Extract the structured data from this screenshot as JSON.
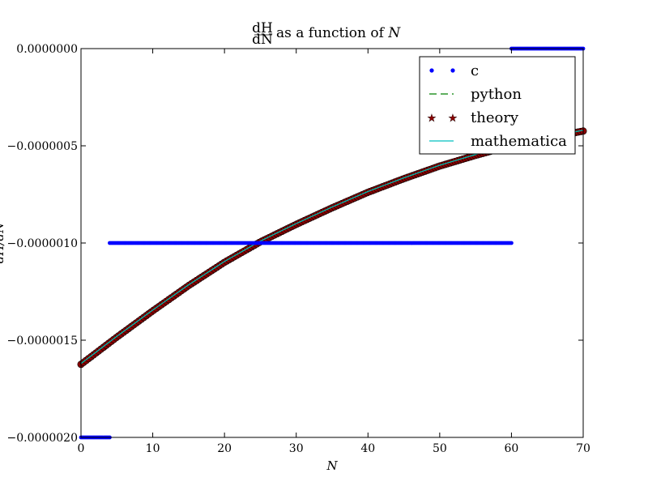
{
  "chart_data": {
    "type": "line",
    "title_prefix": "dH/dN",
    "title_suffix": " as a function of ",
    "title_var": "N",
    "xlabel": "N",
    "ylabel": "dH/dN",
    "xlim": [
      0,
      70
    ],
    "ylim": [
      -2e-06,
      0.0
    ],
    "x_ticks": [
      0,
      10,
      20,
      30,
      40,
      50,
      60,
      70
    ],
    "x_tick_labels": [
      "0",
      "10",
      "20",
      "30",
      "40",
      "50",
      "60",
      "70"
    ],
    "y_ticks": [
      0.0,
      -5e-07,
      -1e-06,
      -1.5e-06,
      -2e-06
    ],
    "y_tick_labels": [
      "0.0000000",
      "−0.0000005",
      "−0.0000010",
      "−0.0000015",
      "−0.0000020"
    ],
    "grid": false,
    "legend_placement": "upper-right",
    "series": [
      {
        "name": "c",
        "style": "dots",
        "color": "#0000ff",
        "segments": [
          {
            "x": [
              0,
              4
            ],
            "y": -2e-06
          },
          {
            "x": [
              4,
              60
            ],
            "y": -1e-06
          },
          {
            "x": [
              60,
              70
            ],
            "y": 0.0
          }
        ]
      },
      {
        "name": "python",
        "style": "dashed",
        "color": "#008000",
        "x": [
          0,
          5,
          10,
          15,
          20,
          25,
          30,
          35,
          40,
          45,
          50,
          55,
          60,
          65,
          70
        ],
        "y": [
          -1.62e-06,
          -1.48e-06,
          -1.345e-06,
          -1.215e-06,
          -1.095e-06,
          -9.9e-07,
          -9e-07,
          -8.15e-07,
          -7.35e-07,
          -6.65e-07,
          -6e-07,
          -5.45e-07,
          -4.95e-07,
          -4.55e-07,
          -4.2e-07
        ]
      },
      {
        "name": "theory",
        "style": "stars",
        "color": "#8b0000",
        "x": [
          0,
          5,
          10,
          15,
          20,
          25,
          30,
          35,
          40,
          45,
          50,
          55,
          60,
          65,
          70
        ],
        "y": [
          -1.62e-06,
          -1.48e-06,
          -1.345e-06,
          -1.215e-06,
          -1.095e-06,
          -9.9e-07,
          -9e-07,
          -8.15e-07,
          -7.35e-07,
          -6.65e-07,
          -6e-07,
          -5.45e-07,
          -4.95e-07,
          -4.55e-07,
          -4.2e-07
        ]
      },
      {
        "name": "mathematica",
        "style": "solid",
        "color": "#00bfbf",
        "x": [
          0,
          5,
          10,
          15,
          20,
          25,
          30,
          35,
          40,
          45,
          50,
          55,
          60,
          65,
          70
        ],
        "y": [
          -1.62e-06,
          -1.48e-06,
          -1.345e-06,
          -1.215e-06,
          -1.095e-06,
          -9.9e-07,
          -9e-07,
          -8.15e-07,
          -7.35e-07,
          -6.65e-07,
          -6e-07,
          -5.45e-07,
          -4.95e-07,
          -4.55e-07,
          -4.2e-07
        ]
      }
    ]
  }
}
